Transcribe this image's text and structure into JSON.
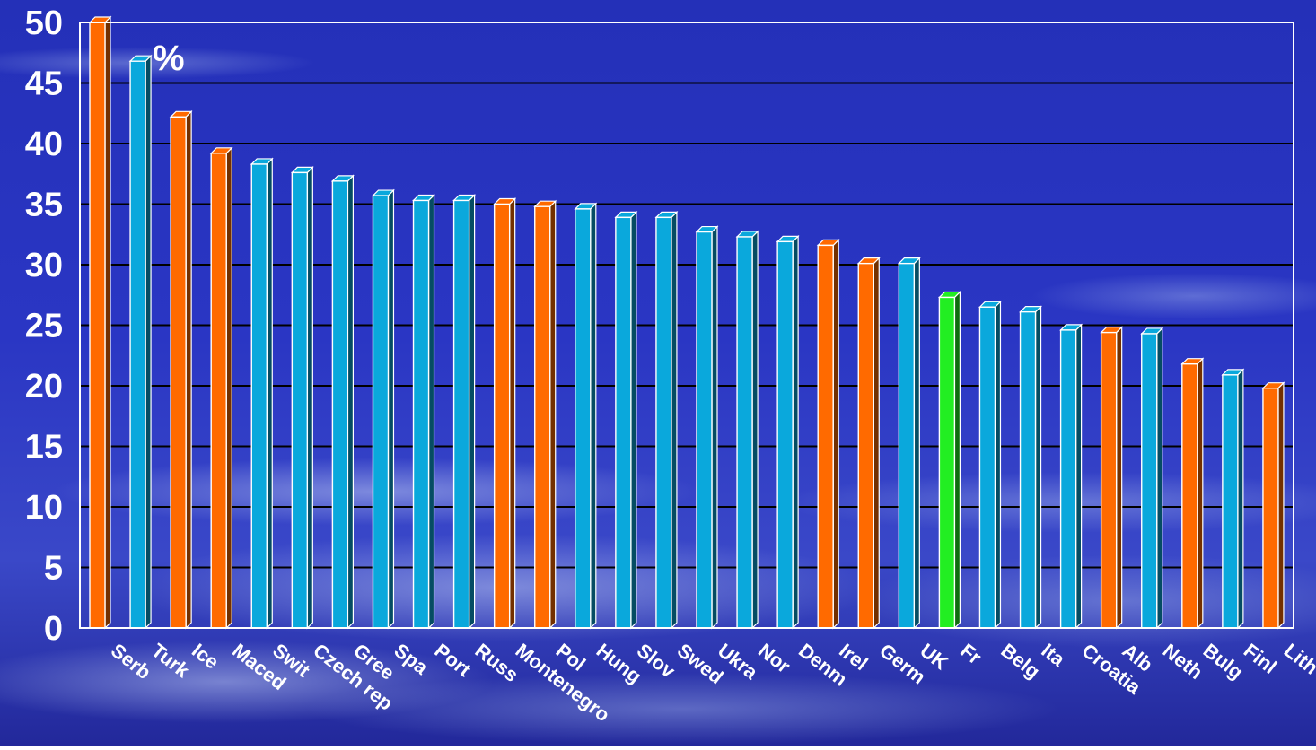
{
  "chart_data": {
    "type": "bar",
    "unit_label": "%",
    "categories": [
      "Serb",
      "Turk",
      "Ice",
      "Maced",
      "Swit",
      "Czech rep",
      "Gree",
      "Spa",
      "Port",
      "Russ",
      "Montenegro",
      "Pol",
      "Hung",
      "Slov",
      "Swed",
      "Ukra",
      "Nor",
      "Denm",
      "Irel",
      "Germ",
      "UK",
      "Fr",
      "Belg",
      "Ita",
      "Croatia",
      "Alb",
      "Neth",
      "Bulg",
      "Finl",
      "Lith"
    ],
    "values": [
      50,
      46.8,
      42.2,
      39.2,
      38.3,
      37.6,
      36.9,
      35.7,
      35.3,
      35.3,
      35.0,
      34.8,
      34.6,
      33.9,
      33.9,
      32.7,
      32.3,
      31.9,
      31.6,
      30.1,
      30.1,
      27.3,
      26.5,
      26.1,
      24.6,
      24.4,
      24.3,
      21.8,
      20.9,
      19.8
    ],
    "bar_colors": [
      "orange",
      "blue",
      "orange",
      "orange",
      "blue",
      "blue",
      "blue",
      "blue",
      "blue",
      "blue",
      "orange",
      "orange",
      "blue",
      "blue",
      "blue",
      "blue",
      "blue",
      "blue",
      "orange",
      "orange",
      "blue",
      "green",
      "blue",
      "blue",
      "blue",
      "orange",
      "blue",
      "orange",
      "blue",
      "orange"
    ],
    "colors": {
      "orange": "#ff6a00",
      "blue": "#0aa8dc",
      "green": "#22ee22"
    },
    "ylim": [
      0,
      50
    ],
    "yticks": [
      0,
      5,
      10,
      15,
      20,
      25,
      30,
      35,
      40,
      45,
      50
    ],
    "grid": true,
    "title": "",
    "xlabel": "",
    "ylabel": ""
  }
}
